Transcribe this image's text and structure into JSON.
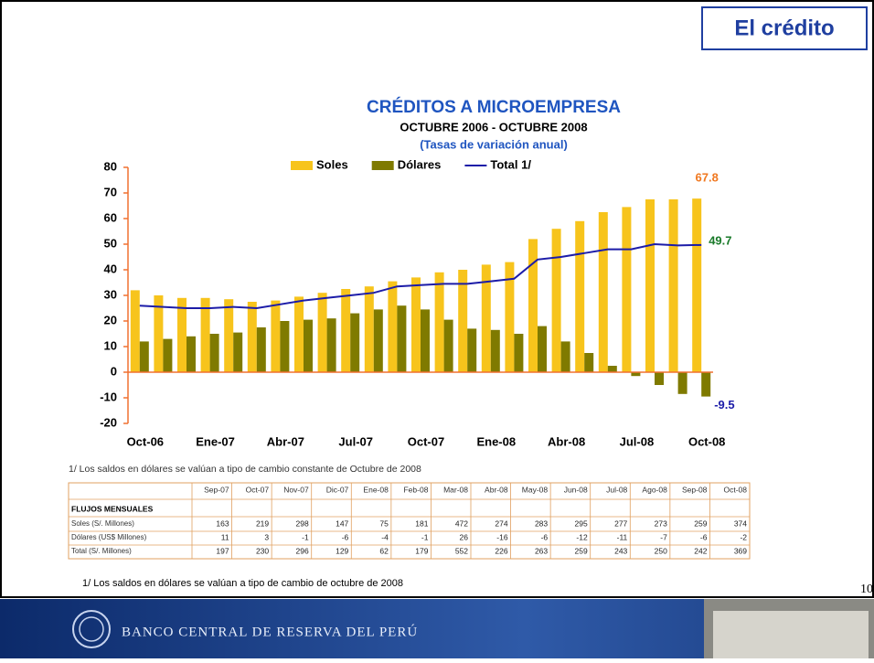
{
  "slide_title": "El crédito",
  "chart_data": {
    "type": "bar",
    "title": "CRÉDITOS A MICROEMPRESA",
    "subtitle": "OCTUBRE 2006 - OCTUBRE 2008",
    "caption": "(Tasas de variación anual)",
    "categories": [
      "Oct-06",
      null,
      null,
      "Ene-07",
      null,
      null,
      "Abr-07",
      null,
      null,
      "Jul-07",
      null,
      null,
      "Oct-07",
      null,
      null,
      "Ene-08",
      null,
      null,
      "Abr-08",
      null,
      null,
      "Jul-08",
      null,
      null,
      "Oct-08"
    ],
    "series": [
      {
        "name": "Soles",
        "type": "bar",
        "color": "#f7c41c",
        "values": [
          32,
          30,
          29,
          29,
          28.5,
          27.5,
          28,
          29.5,
          31,
          32.5,
          33.5,
          35.5,
          37,
          39,
          40,
          42,
          43,
          52,
          56,
          59,
          62.5,
          64.5,
          67.5,
          67.5,
          67.8
        ]
      },
      {
        "name": "Dólares",
        "type": "bar",
        "color": "#7f7a00",
        "values": [
          12,
          13,
          14,
          15,
          15.5,
          17.5,
          20,
          20.5,
          21,
          23,
          24.5,
          26,
          24.5,
          20.5,
          17,
          16.5,
          15,
          18,
          12,
          7.5,
          2.5,
          -1.5,
          -5,
          -8.5,
          -9.5
        ]
      },
      {
        "name": "Total 1/",
        "type": "line",
        "color": "#1c1ca8",
        "values": [
          26,
          25.5,
          25,
          25,
          25.5,
          25,
          26.5,
          28,
          29,
          30,
          31,
          33.5,
          34,
          34.5,
          34.5,
          35.5,
          36.5,
          44,
          45,
          46.5,
          48,
          48,
          50,
          49.5,
          49.7
        ]
      }
    ],
    "label_colors": [
      "#f07820",
      "#1c1ca8",
      "#1a7a2a"
    ],
    "ylim": [
      -20,
      80
    ],
    "yticks": [
      -20,
      -10,
      0,
      10,
      20,
      30,
      40,
      50,
      60,
      70,
      80
    ],
    "legend": "top",
    "grid": false
  },
  "chart_note": "1/ Los saldos en dólares se valúan a tipo de cambio constante de Octubre de 2008",
  "table": {
    "columns": [
      "Sep-07",
      "Oct-07",
      "Nov-07",
      "Dic-07",
      "Ene-08",
      "Feb-08",
      "Mar-08",
      "Abr-08",
      "May-08",
      "Jun-08",
      "Jul-08",
      "Ago-08",
      "Sep-08",
      "Oct-08"
    ],
    "section": "FLUJOS MENSUALES",
    "rows": [
      {
        "label": "Soles (S/. Millones)",
        "values": [
          163,
          219,
          298,
          147,
          75,
          181,
          472,
          274,
          283,
          295,
          277,
          273,
          259,
          374
        ]
      },
      {
        "label": "Dólares (US$ Millones)",
        "values": [
          11,
          3,
          -1,
          -6,
          -4,
          -1,
          26,
          -16,
          -6,
          -12,
          -11,
          -7,
          -6,
          -2
        ]
      },
      {
        "label": "Total (S/. Millones)",
        "values": [
          197,
          230,
          296,
          129,
          62,
          179,
          552,
          226,
          263,
          259,
          243,
          250,
          242,
          369
        ]
      }
    ]
  },
  "footnote": "1/ Los saldos en dólares se valúan a tipo de cambio de octubre de 2008",
  "page_number": "10",
  "footer": "BANCO CENTRAL DE RESERVA DEL PERÚ"
}
